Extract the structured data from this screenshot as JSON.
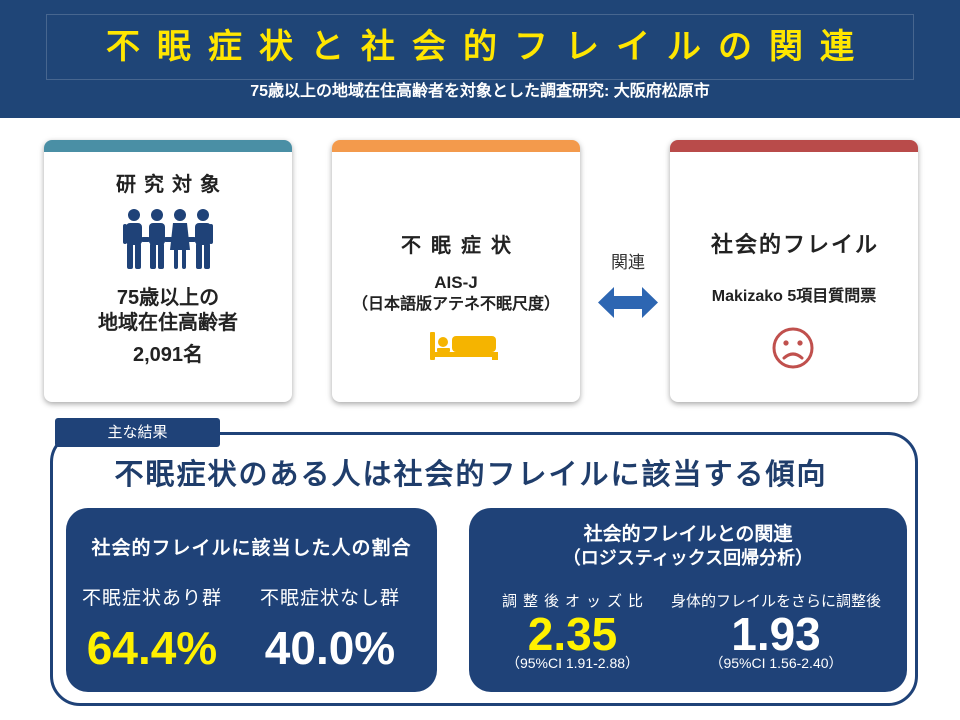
{
  "header": {
    "title": "不眠症状と社会的フレイルの関連",
    "subtitle": "75歳以上の地域在住高齢者を対象とした調査研究: 大阪府松原市"
  },
  "cards": {
    "subjects": {
      "title": "研究対象",
      "icon": "people-group-icon",
      "lines": [
        "75歳以上の",
        "地域在住高齢者",
        "2,091名"
      ],
      "accent": "#4a8fa5"
    },
    "insomnia": {
      "title": "不眠症状",
      "measure": "AIS-J",
      "measure_note": "（日本語版アテネ不眠尺度）",
      "icon": "bed-icon",
      "accent": "#f39a4c"
    },
    "frailty": {
      "title": "社会的フレイル",
      "measure": "Makizako 5項目質問票",
      "icon": "sad-face-icon",
      "accent": "#b94b4a"
    }
  },
  "relation": {
    "label": "関連",
    "icon": "double-arrow-icon"
  },
  "results": {
    "tab": "主な結果",
    "headline": "不眠症状のある人は社会的フレイルに該当する傾向",
    "proportion": {
      "title": "社会的フレイルに該当した人の割合",
      "groups": [
        {
          "label": "不眠症状あり群",
          "value": "64.4%",
          "value_color": "#fff100"
        },
        {
          "label": "不眠症状なし群",
          "value": "40.0%",
          "value_color": "#ffffff"
        }
      ]
    },
    "association": {
      "title": "社会的フレイルとの関連",
      "method": "（ロジスティックス回帰分析）",
      "estimates": [
        {
          "label": "調整後オッズ比",
          "value": "2.35",
          "ci": "（95%CI 1.91-2.88）",
          "value_color": "#fff100"
        },
        {
          "label": "身体的フレイルをさらに調整後",
          "value": "1.93",
          "ci": "（95%CI 1.56-2.40）",
          "value_color": "#ffffff"
        }
      ]
    }
  },
  "colors": {
    "header_bg": "#1f4577",
    "title": "#ffe600",
    "navy": "#1f4278",
    "heading": "#1f3d6b",
    "people_icon": "#1f4278",
    "bed_icon": "#f5b400",
    "sad_face_icon": "#c0504d",
    "arrow_icon": "#2d66b2"
  }
}
